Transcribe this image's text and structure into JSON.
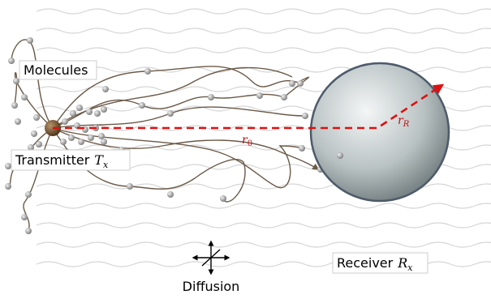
{
  "labels": {
    "molecules": "Molecules",
    "transmitter": {
      "text": "Transmitter",
      "symbol": "T",
      "subscript": "x"
    },
    "receiver": {
      "text": "Receiver",
      "symbol": "R",
      "subscript": "x"
    },
    "diffusion": "Diffusion",
    "distance": {
      "symbol": "r",
      "subscript": "0"
    },
    "radius": {
      "symbol": "r",
      "subscript": "R"
    }
  }
}
